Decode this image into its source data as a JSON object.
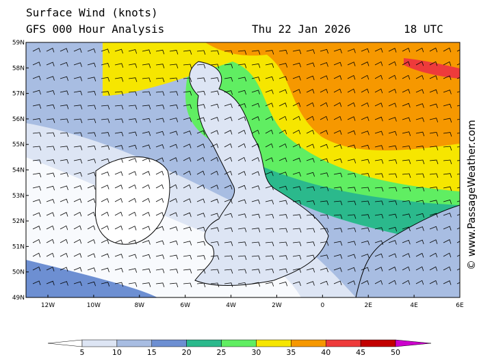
{
  "header": {
    "title": "Surface Wind (knots)",
    "subtitle": "GFS 000 Hour Analysis",
    "date": "Thu 22 Jan 2026",
    "time": "18 UTC"
  },
  "map": {
    "lat_labels": [
      "59N",
      "58N",
      "57N",
      "56N",
      "55N",
      "54N",
      "53N",
      "52N",
      "51N",
      "50N",
      "49N"
    ],
    "lon_labels": [
      "12W",
      "10W",
      "8W",
      "6W",
      "4W",
      "2W",
      "0",
      "2E",
      "4E",
      "6E"
    ]
  },
  "legend": {
    "levels": [
      5,
      10,
      15,
      20,
      25,
      30,
      35,
      40,
      45,
      50
    ],
    "colors": [
      "#ffffff",
      "#dde5f4",
      "#a8bde2",
      "#6d8fd2",
      "#2bb98c",
      "#60ee62",
      "#f6e600",
      "#f69800",
      "#ee3b3b",
      "#c20000",
      "#cc00cc"
    ]
  },
  "credit": "© www.PassageWeather.com"
}
